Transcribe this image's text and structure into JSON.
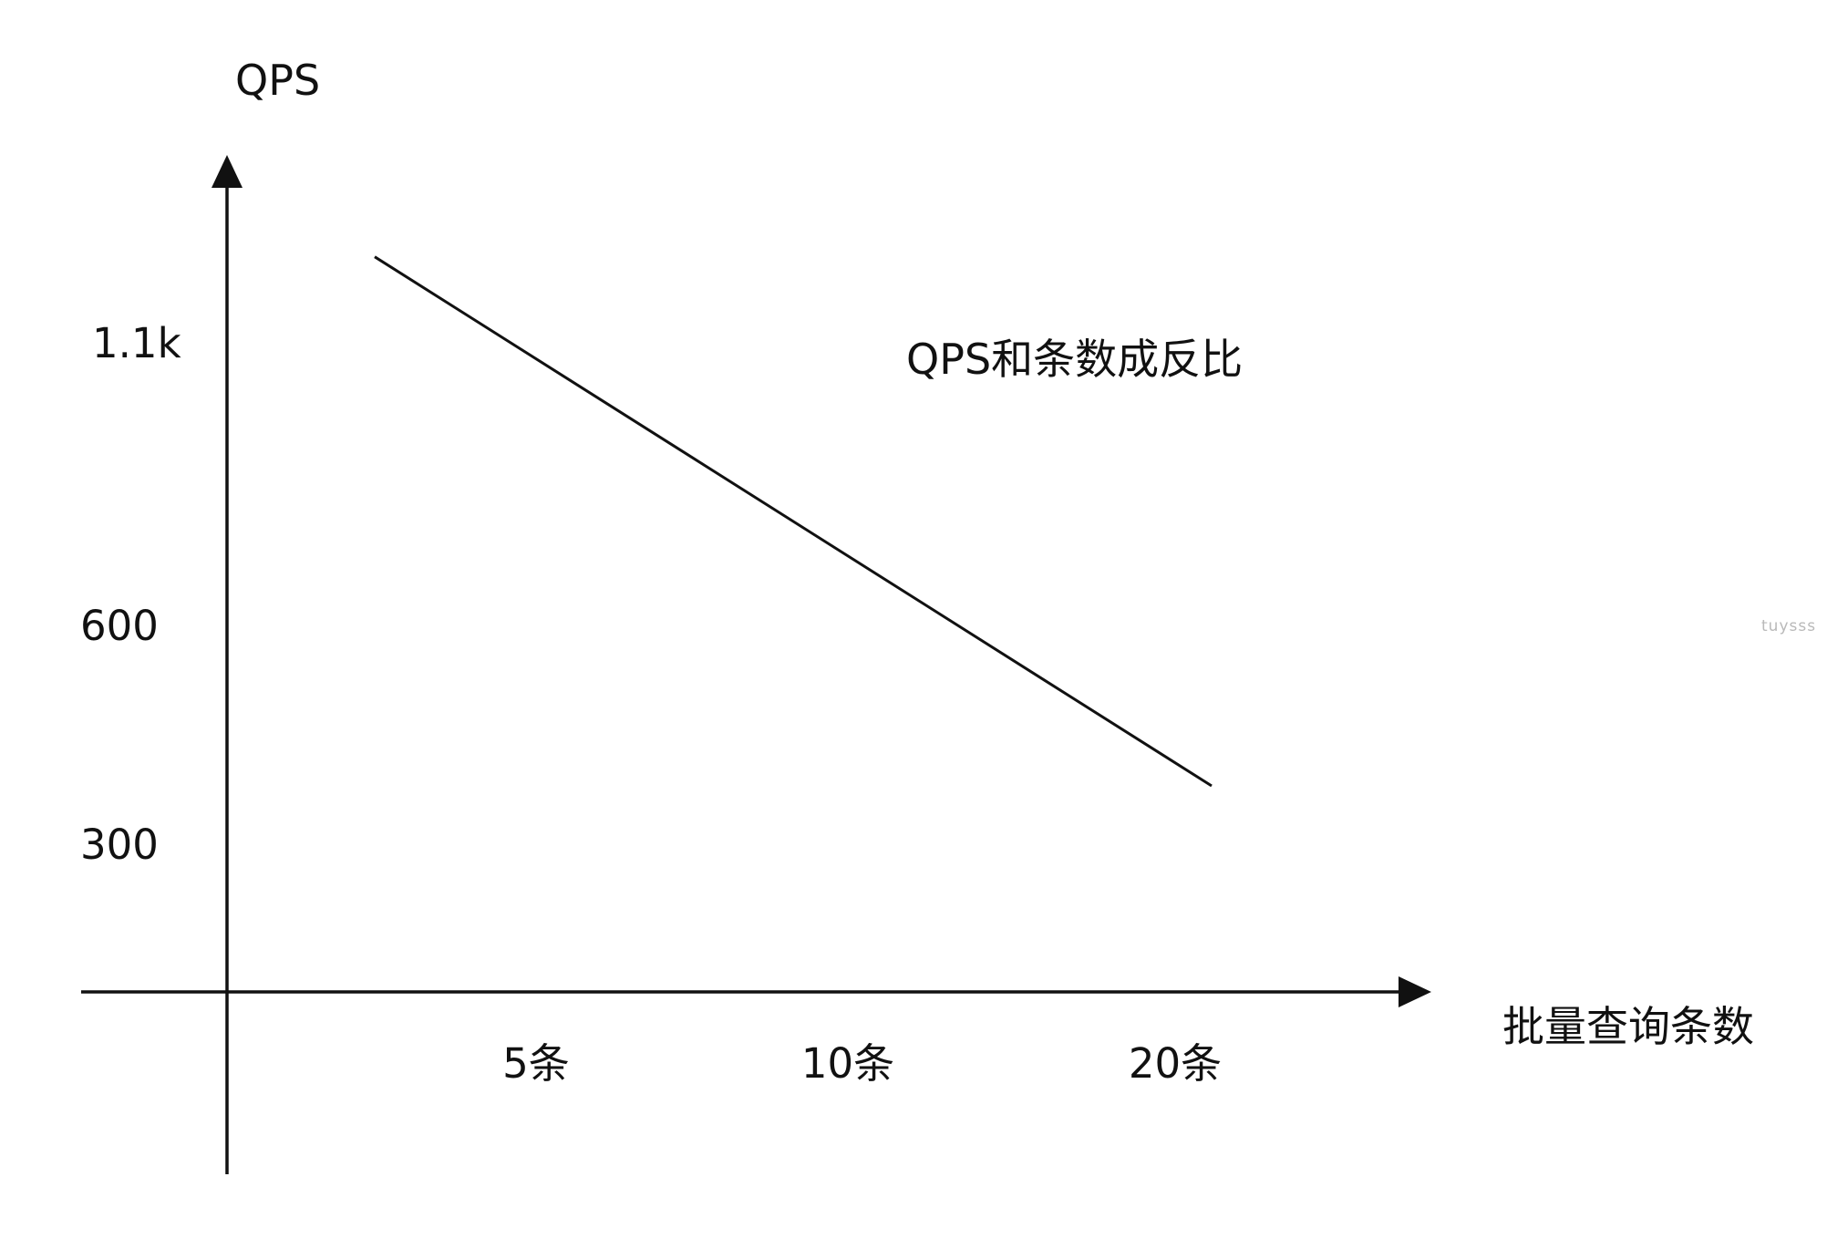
{
  "chart_data": {
    "type": "line",
    "ylabel": "QPS",
    "xlabel": "批量查询条数",
    "x_ticks": [
      "5条",
      "10条",
      "20条"
    ],
    "y_ticks": [
      "1.1k",
      "600",
      "300"
    ],
    "annotation": "QPS和条数成反比",
    "series": [
      {
        "x": [
          "",
          "20条"
        ],
        "y": [
          1250,
          380
        ]
      }
    ],
    "grid": false,
    "colors": {
      "line": "#111111",
      "axis": "#111111"
    }
  },
  "watermark": "tuysss"
}
